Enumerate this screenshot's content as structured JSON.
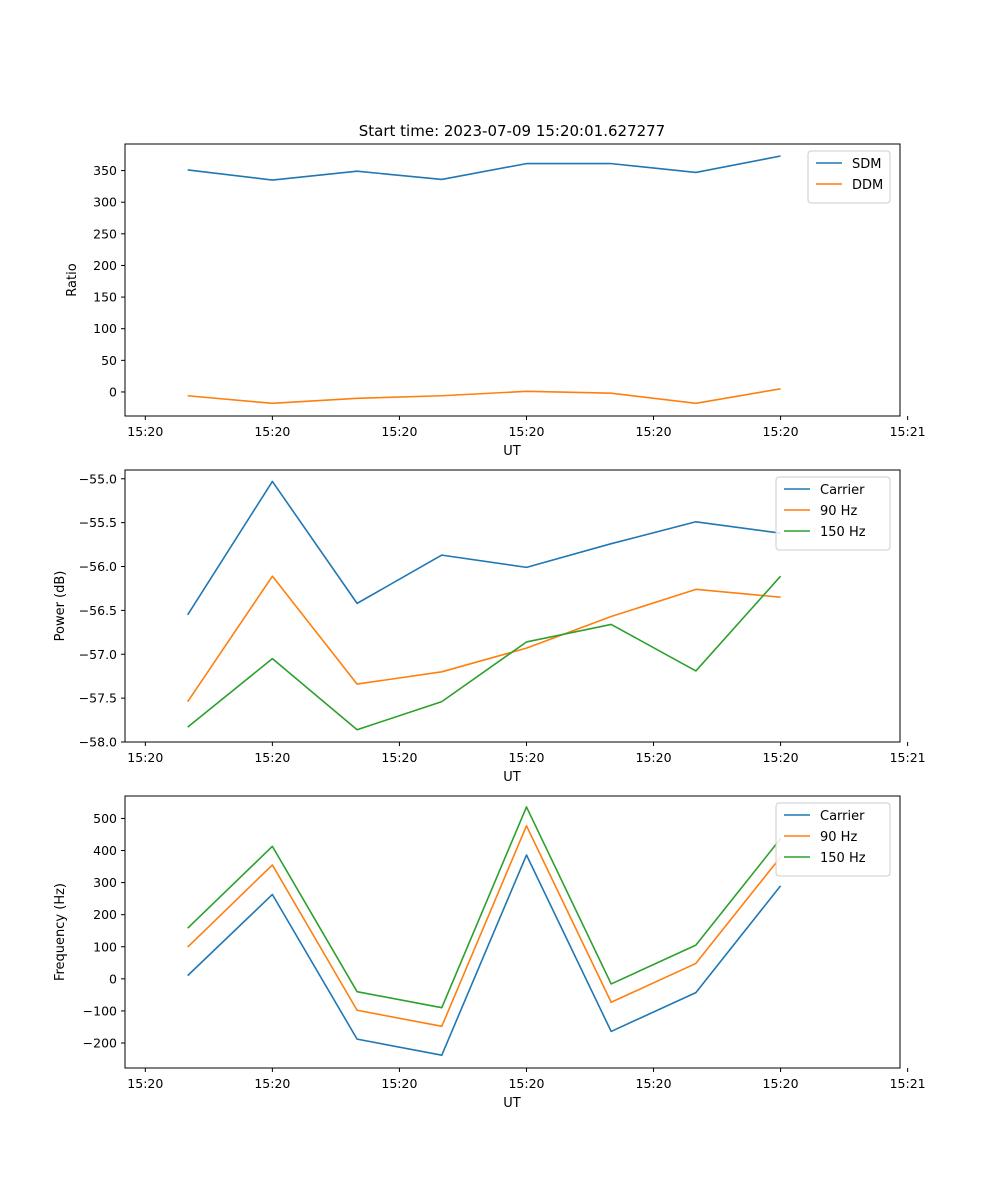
{
  "figure": {
    "title": "Start time: 2023-07-09 15:20:01.627277"
  },
  "chart_data": [
    {
      "type": "line",
      "title": "Start time: 2023-07-09 15:20:01.627277",
      "xlabel": "UT",
      "ylabel": "Ratio",
      "x": [
        1,
        2,
        3,
        4,
        5,
        6,
        7,
        8
      ],
      "xlim": [
        0.26,
        9.41
      ],
      "ylim": [
        -38,
        392
      ],
      "yticks": [
        0,
        50,
        100,
        150,
        200,
        250,
        300,
        350
      ],
      "xtick_positions": [
        0.5,
        2,
        3.5,
        5,
        6.5,
        8,
        9.5
      ],
      "xtick_labels": [
        "15:20",
        "15:20",
        "15:20",
        "15:20",
        "15:20",
        "15:20",
        "15:21"
      ],
      "legend": "top-right",
      "series": [
        {
          "name": "SDM",
          "color": "#1f77b4",
          "values": [
            351,
            335,
            349,
            336,
            361,
            361,
            347,
            373
          ]
        },
        {
          "name": "DDM",
          "color": "#ff7f0e",
          "values": [
            -6,
            -18,
            -10,
            -6,
            1,
            -2,
            -18,
            5
          ]
        }
      ]
    },
    {
      "type": "line",
      "title": "",
      "xlabel": "UT",
      "ylabel": "Power (dB)",
      "x": [
        1,
        2,
        3,
        4,
        5,
        6,
        7,
        8
      ],
      "xlim": [
        0.26,
        9.41
      ],
      "ylim": [
        -58.0,
        -54.9
      ],
      "yticks": [
        -58.0,
        -57.5,
        -57.0,
        -56.5,
        -56.0,
        -55.5,
        -55.0
      ],
      "ytick_labels": [
        "−58.0",
        "−57.5",
        "−57.0",
        "−56.5",
        "−56.0",
        "−55.5",
        "−55.0"
      ],
      "xtick_positions": [
        0.5,
        2,
        3.5,
        5,
        6.5,
        8,
        9.5
      ],
      "xtick_labels": [
        "15:20",
        "15:20",
        "15:20",
        "15:20",
        "15:20",
        "15:20",
        "15:21"
      ],
      "legend": "top-right",
      "series": [
        {
          "name": "Carrier",
          "color": "#1f77b4",
          "values": [
            -56.55,
            -55.03,
            -56.42,
            -55.87,
            -56.01,
            -55.74,
            -55.49,
            -55.62
          ]
        },
        {
          "name": "90 Hz",
          "color": "#ff7f0e",
          "values": [
            -57.54,
            -56.11,
            -57.34,
            -57.2,
            -56.93,
            -56.57,
            -56.26,
            -56.35
          ]
        },
        {
          "name": "150 Hz",
          "color": "#2ca02c",
          "values": [
            -57.83,
            -57.05,
            -57.86,
            -57.54,
            -56.86,
            -56.66,
            -57.19,
            -56.11
          ]
        }
      ]
    },
    {
      "type": "line",
      "title": "",
      "xlabel": "UT",
      "ylabel": "Frequency (Hz)",
      "x": [
        1,
        2,
        3,
        4,
        5,
        6,
        7,
        8
      ],
      "xlim": [
        0.26,
        9.41
      ],
      "ylim": [
        -278,
        570
      ],
      "yticks": [
        -200,
        -100,
        0,
        100,
        200,
        300,
        400,
        500
      ],
      "ytick_labels": [
        "−200",
        "−100",
        "0",
        "100",
        "200",
        "300",
        "400",
        "500"
      ],
      "xtick_positions": [
        0.5,
        2,
        3.5,
        5,
        6.5,
        8,
        9.5
      ],
      "xtick_labels": [
        "15:20",
        "15:20",
        "15:20",
        "15:20",
        "15:20",
        "15:20",
        "15:21"
      ],
      "legend": "top-right",
      "series": [
        {
          "name": "Carrier",
          "color": "#1f77b4",
          "values": [
            10,
            263,
            -188,
            -238,
            386,
            -164,
            -43,
            290
          ]
        },
        {
          "name": "90 Hz",
          "color": "#ff7f0e",
          "values": [
            99,
            355,
            -98,
            -148,
            477,
            -73,
            48,
            380
          ]
        },
        {
          "name": "150 Hz",
          "color": "#2ca02c",
          "values": [
            158,
            413,
            -40,
            -90,
            536,
            -16,
            105,
            437
          ]
        }
      ]
    }
  ]
}
